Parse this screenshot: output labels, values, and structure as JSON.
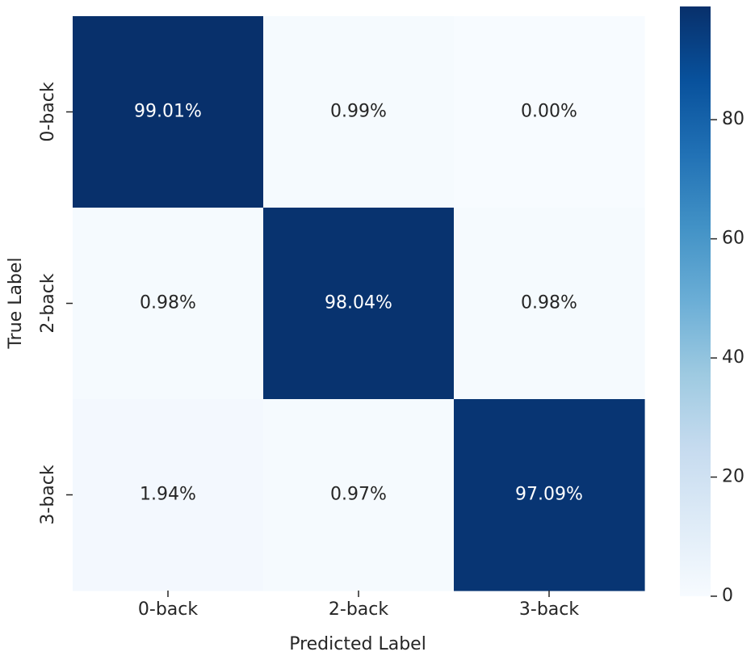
{
  "chart_data": {
    "type": "heatmap",
    "title": "",
    "xlabel": "Predicted Label",
    "ylabel": "True Label",
    "x_categories": [
      "0-back",
      "2-back",
      "3-back"
    ],
    "y_categories": [
      "0-back",
      "2-back",
      "3-back"
    ],
    "values": [
      [
        99.01,
        0.99,
        0.0
      ],
      [
        0.98,
        98.04,
        0.98
      ],
      [
        1.94,
        0.97,
        97.09
      ]
    ],
    "cell_labels": [
      [
        "99.01%",
        "0.99%",
        "0.00%"
      ],
      [
        "0.98%",
        "98.04%",
        "0.98%"
      ],
      [
        "1.94%",
        "0.97%",
        "97.09%"
      ]
    ],
    "colormap": "Blues",
    "colorbar": {
      "range": [
        0,
        99.01
      ],
      "ticks": [
        0,
        20,
        40,
        60,
        80
      ],
      "tick_labels": [
        "0",
        "20",
        "40",
        "60",
        "80"
      ]
    },
    "grid": false,
    "legend": "colorbar-right"
  }
}
